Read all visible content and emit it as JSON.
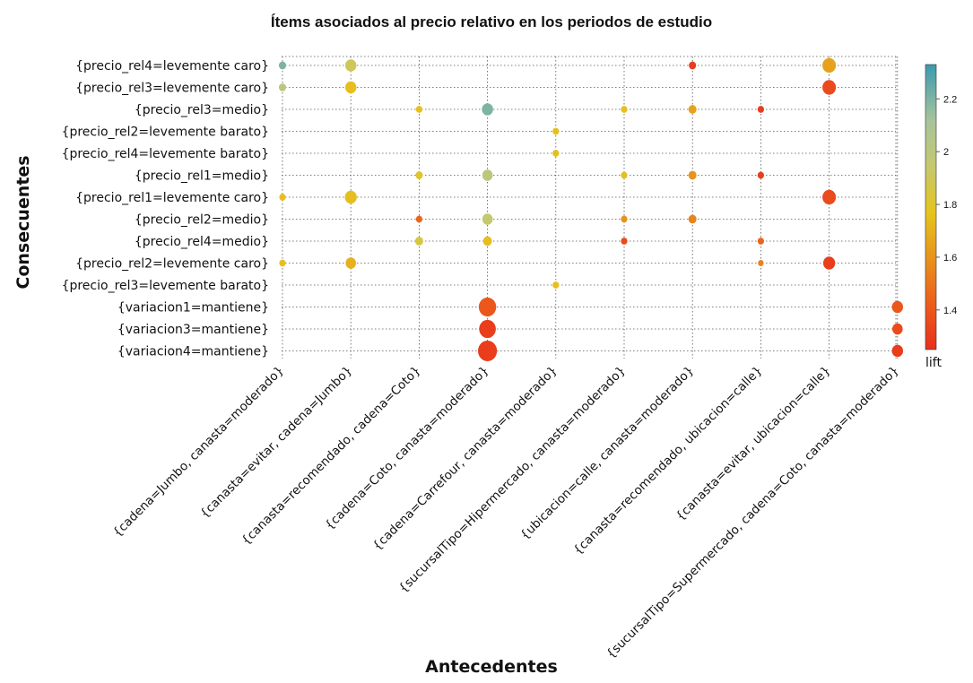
{
  "chart_data": {
    "type": "scatter",
    "title": "Ítems asociados al precio relativo en los periodos de estudio",
    "xlabel": "Antecedentes",
    "ylabel": "Consecuentes",
    "x_categories": [
      "{cadena=Jumbo, canasta=moderado}",
      "{canasta=evitar, cadena=Jumbo}",
      "{canasta=recomendado, cadena=Coto}",
      "{cadena=Coto, canasta=moderado}",
      "{cadena=Carrefour, canasta=moderado}",
      "{sucursalTipo=Hipermercado, canasta=moderado}",
      "{ubicacion=calle, canasta=moderado}",
      "{canasta=recomendado, ubicacion=calle}",
      "{canasta=evitar, ubicacion=calle}",
      "{sucursalTipo=Supermercado, cadena=Coto, canasta=moderado}"
    ],
    "y_categories": [
      "{precio_rel4=levemente caro}",
      "{precio_rel3=levemente caro}",
      "{precio_rel3=medio}",
      "{precio_rel2=levemente barato}",
      "{precio_rel4=levemente barato}",
      "{precio_rel1=medio}",
      "{precio_rel1=levemente caro}",
      "{precio_rel2=medio}",
      "{precio_rel4=medio}",
      "{precio_rel2=levemente caro}",
      "{precio_rel3=levemente barato}",
      "{variacion1=mantiene}",
      "{variacion3=mantiene}",
      "{variacion4=mantiene}"
    ],
    "size_encoding": "support",
    "color_encoding": "lift",
    "colorbar": {
      "label": "lift",
      "range": [
        1.25,
        2.33
      ],
      "ticks": [
        1.4,
        1.6,
        1.8,
        2,
        2.2
      ],
      "colors": [
        "#e8301c",
        "#ec5a1c",
        "#e8921c",
        "#e6c41e",
        "#c4c870",
        "#a8c49a",
        "#3c9ab0"
      ]
    },
    "points": [
      {
        "x": "{cadena=Jumbo, canasta=moderado}",
        "y": "{precio_rel4=levemente caro}",
        "lift": 2.2,
        "size": 0.2
      },
      {
        "x": "{canasta=evitar, cadena=Jumbo}",
        "y": "{precio_rel4=levemente caro}",
        "lift": 1.9,
        "size": 0.45
      },
      {
        "x": "{ubicacion=calle, canasta=moderado}",
        "y": "{precio_rel4=levemente caro}",
        "lift": 1.3,
        "size": 0.2
      },
      {
        "x": "{canasta=evitar, ubicacion=calle}",
        "y": "{precio_rel4=levemente caro}",
        "lift": 1.65,
        "size": 0.6
      },
      {
        "x": "{cadena=Jumbo, canasta=moderado}",
        "y": "{precio_rel3=levemente caro}",
        "lift": 2.0,
        "size": 0.2
      },
      {
        "x": "{canasta=evitar, cadena=Jumbo}",
        "y": "{precio_rel3=levemente caro}",
        "lift": 1.75,
        "size": 0.45
      },
      {
        "x": "{canasta=evitar, ubicacion=calle}",
        "y": "{precio_rel3=levemente caro}",
        "lift": 1.35,
        "size": 0.6
      },
      {
        "x": "{canasta=recomendado, cadena=Coto}",
        "y": "{precio_rel3=medio}",
        "lift": 1.75,
        "size": 0.15
      },
      {
        "x": "{cadena=Coto, canasta=moderado}",
        "y": "{precio_rel3=medio}",
        "lift": 2.2,
        "size": 0.45
      },
      {
        "x": "{sucursalTipo=Hipermercado, canasta=moderado}",
        "y": "{precio_rel3=medio}",
        "lift": 1.75,
        "size": 0.15
      },
      {
        "x": "{ubicacion=calle, canasta=moderado}",
        "y": "{precio_rel3=medio}",
        "lift": 1.65,
        "size": 0.25
      },
      {
        "x": "{canasta=recomendado, ubicacion=calle}",
        "y": "{precio_rel3=medio}",
        "lift": 1.3,
        "size": 0.15
      },
      {
        "x": "{cadena=Carrefour, canasta=moderado}",
        "y": "{precio_rel2=levemente barato}",
        "lift": 1.75,
        "size": 0.15
      },
      {
        "x": "{cadena=Carrefour, canasta=moderado}",
        "y": "{precio_rel4=levemente barato}",
        "lift": 1.75,
        "size": 0.15
      },
      {
        "x": "{canasta=recomendado, cadena=Coto}",
        "y": "{precio_rel1=medio}",
        "lift": 1.8,
        "size": 0.2
      },
      {
        "x": "{cadena=Coto, canasta=moderado}",
        "y": "{precio_rel1=medio}",
        "lift": 2.0,
        "size": 0.4
      },
      {
        "x": "{sucursalTipo=Hipermercado, canasta=moderado}",
        "y": "{precio_rel1=medio}",
        "lift": 1.75,
        "size": 0.15
      },
      {
        "x": "{ubicacion=calle, canasta=moderado}",
        "y": "{precio_rel1=medio}",
        "lift": 1.6,
        "size": 0.25
      },
      {
        "x": "{canasta=recomendado, ubicacion=calle}",
        "y": "{precio_rel1=medio}",
        "lift": 1.3,
        "size": 0.15
      },
      {
        "x": "{cadena=Jumbo, canasta=moderado}",
        "y": "{precio_rel1=levemente caro}",
        "lift": 1.75,
        "size": 0.15
      },
      {
        "x": "{canasta=evitar, cadena=Jumbo}",
        "y": "{precio_rel1=levemente caro}",
        "lift": 1.75,
        "size": 0.5
      },
      {
        "x": "{canasta=evitar, ubicacion=calle}",
        "y": "{precio_rel1=levemente caro}",
        "lift": 1.35,
        "size": 0.6
      },
      {
        "x": "{canasta=recomendado, cadena=Coto}",
        "y": "{precio_rel2=medio}",
        "lift": 1.45,
        "size": 0.15
      },
      {
        "x": "{cadena=Coto, canasta=moderado}",
        "y": "{precio_rel2=medio}",
        "lift": 1.95,
        "size": 0.4
      },
      {
        "x": "{sucursalTipo=Hipermercado, canasta=moderado}",
        "y": "{precio_rel2=medio}",
        "lift": 1.6,
        "size": 0.15
      },
      {
        "x": "{ubicacion=calle, canasta=moderado}",
        "y": "{precio_rel2=medio}",
        "lift": 1.55,
        "size": 0.25
      },
      {
        "x": "{canasta=recomendado, cadena=Coto}",
        "y": "{precio_rel4=medio}",
        "lift": 1.85,
        "size": 0.25
      },
      {
        "x": "{cadena=Coto, canasta=moderado}",
        "y": "{precio_rel4=medio}",
        "lift": 1.75,
        "size": 0.3
      },
      {
        "x": "{sucursalTipo=Hipermercado, canasta=moderado}",
        "y": "{precio_rel4=medio}",
        "lift": 1.35,
        "size": 0.15
      },
      {
        "x": "{canasta=recomendado, ubicacion=calle}",
        "y": "{precio_rel4=medio}",
        "lift": 1.45,
        "size": 0.15
      },
      {
        "x": "{cadena=Jumbo, canasta=moderado}",
        "y": "{precio_rel2=levemente caro}",
        "lift": 1.75,
        "size": 0.15
      },
      {
        "x": "{canasta=evitar, cadena=Jumbo}",
        "y": "{precio_rel2=levemente caro}",
        "lift": 1.7,
        "size": 0.4
      },
      {
        "x": "{canasta=recomendado, ubicacion=calle}",
        "y": "{precio_rel2=levemente caro}",
        "lift": 1.55,
        "size": 0.1
      },
      {
        "x": "{canasta=evitar, ubicacion=calle}",
        "y": "{precio_rel2=levemente caro}",
        "lift": 1.3,
        "size": 0.5
      },
      {
        "x": "{cadena=Carrefour, canasta=moderado}",
        "y": "{precio_rel3=levemente barato}",
        "lift": 1.75,
        "size": 0.15
      },
      {
        "x": "{cadena=Coto, canasta=moderado}",
        "y": "{variacion1=mantiene}",
        "lift": 1.4,
        "size": 0.85
      },
      {
        "x": "{sucursalTipo=Supermercado, cadena=Coto, canasta=moderado}",
        "y": "{variacion1=mantiene}",
        "lift": 1.4,
        "size": 0.45
      },
      {
        "x": "{cadena=Coto, canasta=moderado}",
        "y": "{variacion3=mantiene}",
        "lift": 1.3,
        "size": 0.8
      },
      {
        "x": "{sucursalTipo=Supermercado, cadena=Coto, canasta=moderado}",
        "y": "{variacion3=mantiene}",
        "lift": 1.35,
        "size": 0.4
      },
      {
        "x": "{cadena=Coto, canasta=moderado}",
        "y": "{variacion4=mantiene}",
        "lift": 1.3,
        "size": 0.95
      },
      {
        "x": "{sucursalTipo=Supermercado, cadena=Coto, canasta=moderado}",
        "y": "{variacion4=mantiene}",
        "lift": 1.3,
        "size": 0.45
      }
    ],
    "grid": true
  }
}
